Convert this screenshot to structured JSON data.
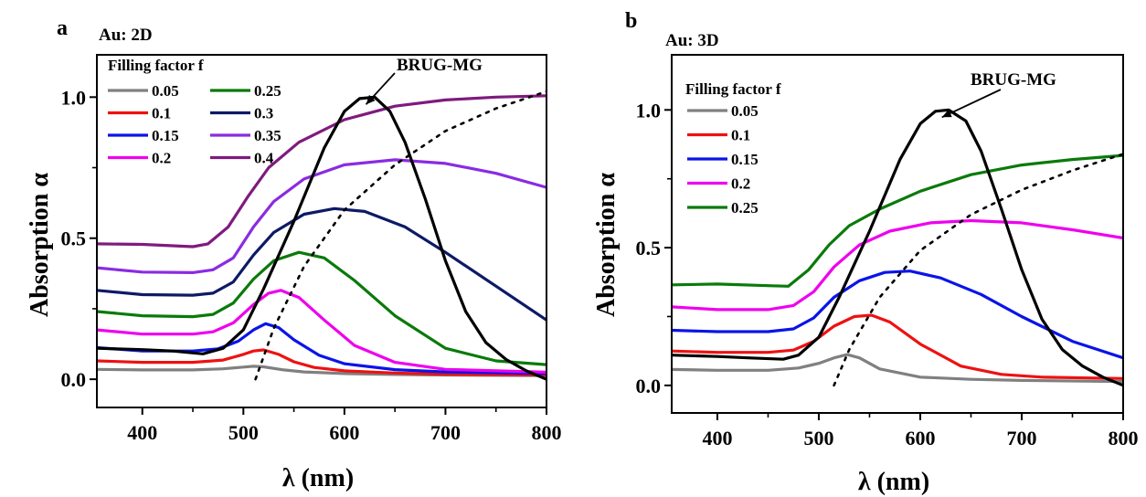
{
  "chart_data": [
    {
      "type": "line",
      "panel_label": "a",
      "title": "Au: 2D",
      "xlabel": "λ (nm)",
      "ylabel": "Absorption α",
      "xlim": [
        355,
        800
      ],
      "ylim": [
        -0.1,
        1.15
      ],
      "xticks": [
        400,
        500,
        600,
        700,
        800
      ],
      "yticks": [
        0.0,
        0.5,
        1.0
      ],
      "ytick_labels": [
        "0.0",
        "0.5",
        "1.0"
      ],
      "grid": false,
      "legend": {
        "title": "Filling factor f",
        "placement": "top-left",
        "columns": 2
      },
      "series": [
        {
          "name": "0.05",
          "color": "#808080",
          "x": [
            355,
            400,
            450,
            480,
            500,
            510,
            520,
            540,
            560,
            600,
            650,
            700,
            800
          ],
          "y": [
            0.035,
            0.033,
            0.033,
            0.037,
            0.043,
            0.046,
            0.044,
            0.033,
            0.026,
            0.02,
            0.017,
            0.015,
            0.013
          ]
        },
        {
          "name": "0.1",
          "color": "#ee1111",
          "x": [
            355,
            400,
            450,
            480,
            500,
            510,
            520,
            535,
            550,
            570,
            600,
            650,
            700,
            800
          ],
          "y": [
            0.065,
            0.06,
            0.06,
            0.068,
            0.088,
            0.1,
            0.104,
            0.088,
            0.062,
            0.042,
            0.03,
            0.022,
            0.018,
            0.015
          ]
        },
        {
          "name": "0.15",
          "color": "#0a14e8",
          "x": [
            355,
            400,
            450,
            475,
            495,
            510,
            522,
            535,
            550,
            575,
            600,
            650,
            700,
            800
          ],
          "y": [
            0.112,
            0.1,
            0.1,
            0.108,
            0.135,
            0.175,
            0.197,
            0.183,
            0.14,
            0.085,
            0.055,
            0.034,
            0.026,
            0.02
          ]
        },
        {
          "name": "0.2",
          "color": "#ee00ee",
          "x": [
            355,
            400,
            450,
            470,
            490,
            510,
            525,
            537,
            555,
            580,
            610,
            650,
            700,
            800
          ],
          "y": [
            0.175,
            0.16,
            0.16,
            0.168,
            0.2,
            0.265,
            0.305,
            0.315,
            0.29,
            0.21,
            0.12,
            0.06,
            0.035,
            0.025
          ]
        },
        {
          "name": "0.25",
          "color": "#0a7a0a",
          "x": [
            355,
            400,
            450,
            470,
            490,
            510,
            530,
            555,
            580,
            610,
            650,
            700,
            750,
            800
          ],
          "y": [
            0.24,
            0.225,
            0.222,
            0.23,
            0.27,
            0.355,
            0.42,
            0.45,
            0.43,
            0.35,
            0.225,
            0.11,
            0.065,
            0.052
          ]
        },
        {
          "name": "0.3",
          "color": "#0d1a66",
          "x": [
            355,
            400,
            450,
            470,
            490,
            510,
            530,
            560,
            590,
            620,
            660,
            700,
            750,
            800
          ],
          "y": [
            0.315,
            0.3,
            0.298,
            0.305,
            0.345,
            0.44,
            0.52,
            0.585,
            0.605,
            0.595,
            0.54,
            0.45,
            0.33,
            0.21
          ]
        },
        {
          "name": "0.35",
          "color": "#8a2be2",
          "x": [
            355,
            400,
            450,
            470,
            490,
            510,
            530,
            560,
            600,
            650,
            700,
            750,
            800
          ],
          "y": [
            0.395,
            0.38,
            0.378,
            0.388,
            0.43,
            0.54,
            0.63,
            0.71,
            0.76,
            0.778,
            0.765,
            0.73,
            0.68
          ]
        },
        {
          "name": "0.4",
          "color": "#7f1a7f",
          "x": [
            355,
            400,
            450,
            465,
            485,
            505,
            525,
            555,
            600,
            650,
            700,
            750,
            800
          ],
          "y": [
            0.48,
            0.478,
            0.47,
            0.48,
            0.54,
            0.65,
            0.75,
            0.84,
            0.92,
            0.968,
            0.99,
            1.0,
            1.005
          ]
        },
        {
          "name": "BRUG-MG",
          "color": "#000000",
          "x": [
            355,
            400,
            430,
            460,
            480,
            500,
            520,
            550,
            580,
            600,
            615,
            630,
            645,
            660,
            680,
            700,
            720,
            740,
            760,
            780,
            800
          ],
          "y": [
            0.11,
            0.105,
            0.1,
            0.09,
            0.11,
            0.175,
            0.32,
            0.56,
            0.82,
            0.95,
            0.995,
            1.0,
            0.95,
            0.84,
            0.64,
            0.42,
            0.24,
            0.13,
            0.07,
            0.03,
            0.0
          ]
        },
        {
          "name": "",
          "color": "#000000",
          "dashed": true,
          "x": [
            512,
            530,
            560,
            600,
            650,
            700,
            750,
            800
          ],
          "y": [
            0.0,
            0.18,
            0.4,
            0.6,
            0.76,
            0.88,
            0.96,
            1.02
          ]
        }
      ],
      "annotations": [
        {
          "text": "BRUG-MG",
          "x": 635,
          "y": 1.08,
          "arrow_to": [
            625,
            1.0
          ]
        }
      ]
    },
    {
      "type": "line",
      "panel_label": "b",
      "title": "Au: 3D",
      "xlabel": "λ (nm)",
      "ylabel": "Absorption α",
      "xlim": [
        355,
        800
      ],
      "ylim": [
        -0.1,
        1.2
      ],
      "xticks": [
        400,
        500,
        600,
        700,
        800
      ],
      "yticks": [
        0.0,
        0.5,
        1.0
      ],
      "ytick_labels": [
        "0.0",
        "0.5",
        "1.0"
      ],
      "grid": false,
      "legend": {
        "title": "Filling factor f",
        "placement": "top-left",
        "columns": 1
      },
      "series": [
        {
          "name": "0.05",
          "color": "#808080",
          "x": [
            355,
            400,
            450,
            480,
            500,
            515,
            528,
            540,
            560,
            600,
            650,
            700,
            800
          ],
          "y": [
            0.058,
            0.055,
            0.055,
            0.063,
            0.08,
            0.1,
            0.112,
            0.1,
            0.06,
            0.03,
            0.022,
            0.018,
            0.014
          ]
        },
        {
          "name": "0.1",
          "color": "#ee1111",
          "x": [
            355,
            400,
            450,
            475,
            495,
            515,
            535,
            552,
            570,
            600,
            640,
            680,
            720,
            800
          ],
          "y": [
            0.125,
            0.12,
            0.12,
            0.128,
            0.16,
            0.215,
            0.25,
            0.255,
            0.23,
            0.15,
            0.07,
            0.04,
            0.03,
            0.025
          ]
        },
        {
          "name": "0.15",
          "color": "#0a14e8",
          "x": [
            355,
            400,
            450,
            475,
            495,
            515,
            540,
            565,
            590,
            620,
            660,
            700,
            750,
            800
          ],
          "y": [
            0.2,
            0.195,
            0.195,
            0.205,
            0.245,
            0.32,
            0.38,
            0.41,
            0.415,
            0.39,
            0.33,
            0.25,
            0.16,
            0.1
          ]
        },
        {
          "name": "0.2",
          "color": "#ee00ee",
          "x": [
            355,
            400,
            450,
            475,
            495,
            515,
            540,
            570,
            610,
            650,
            700,
            750,
            800
          ],
          "y": [
            0.285,
            0.275,
            0.275,
            0.29,
            0.34,
            0.43,
            0.51,
            0.56,
            0.59,
            0.598,
            0.59,
            0.565,
            0.535
          ]
        },
        {
          "name": "0.25",
          "color": "#0a7a0a",
          "x": [
            355,
            400,
            450,
            470,
            490,
            510,
            530,
            560,
            600,
            650,
            700,
            750,
            800
          ],
          "y": [
            0.365,
            0.368,
            0.362,
            0.36,
            0.42,
            0.51,
            0.58,
            0.64,
            0.705,
            0.765,
            0.8,
            0.82,
            0.835
          ]
        },
        {
          "name": "BRUG-MG",
          "color": "#000000",
          "x": [
            355,
            400,
            430,
            465,
            480,
            500,
            520,
            550,
            580,
            600,
            615,
            628,
            645,
            660,
            680,
            700,
            720,
            740,
            760,
            780,
            800
          ],
          "y": [
            0.11,
            0.105,
            0.1,
            0.095,
            0.11,
            0.175,
            0.32,
            0.56,
            0.82,
            0.95,
            0.995,
            1.0,
            0.96,
            0.85,
            0.64,
            0.42,
            0.24,
            0.13,
            0.07,
            0.03,
            0.0
          ]
        },
        {
          "name": "",
          "color": "#000000",
          "dashed": true,
          "x": [
            515,
            530,
            560,
            600,
            650,
            700,
            750,
            800
          ],
          "y": [
            0.0,
            0.13,
            0.32,
            0.49,
            0.62,
            0.71,
            0.78,
            0.84
          ]
        }
      ],
      "annotations": [
        {
          "text": "BRUG-MG",
          "x": 670,
          "y": 1.08,
          "arrow_to": [
            625,
            1.0
          ]
        }
      ]
    }
  ]
}
